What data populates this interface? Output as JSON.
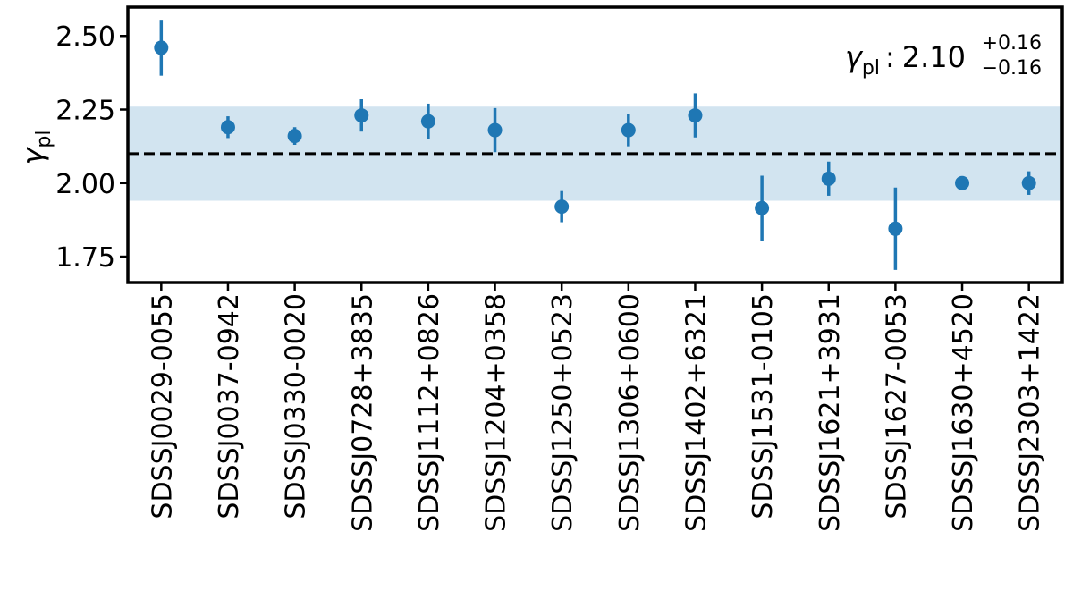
{
  "chart_data": {
    "type": "errorbar",
    "ylabel": {
      "symbol": "γ",
      "subscript": "pl"
    },
    "categories": [
      "SDSSJ0029-0055",
      "SDSSJ0037-0942",
      "SDSSJ0330-0020",
      "SDSSJ0728+3835",
      "SDSSJ1112+0826",
      "SDSSJ1204+0358",
      "SDSSJ1250+0523",
      "SDSSJ1306+0600",
      "SDSSJ1402+6321",
      "SDSSJ1531-0105",
      "SDSSJ1621+3931",
      "SDSSJ1627-0053",
      "SDSSJ1630+4520",
      "SDSSJ2303+1422"
    ],
    "series": [
      {
        "color": "#1f77b4",
        "values": [
          2.46,
          2.19,
          2.16,
          2.23,
          2.21,
          2.18,
          1.92,
          2.18,
          2.23,
          1.915,
          2.015,
          1.845,
          2.0,
          2.0
        ],
        "errors": [
          0.095,
          0.037,
          0.03,
          0.055,
          0.06,
          0.075,
          0.053,
          0.055,
          0.075,
          0.11,
          0.058,
          0.14,
          0.02,
          0.04
        ]
      }
    ],
    "annotation": {
      "symbol": "γ",
      "subscript": "pl",
      "separator": ":",
      "value": 2.1,
      "label": "2.10",
      "err_plus": 0.16,
      "err_plus_label": "+0.16",
      "err_minus": 0.16,
      "err_minus_label": "−0.16",
      "band_color": "#1f77b4",
      "line_color": "#000000"
    },
    "ylim": [
      1.662,
      2.598
    ],
    "yticks": [
      {
        "value": 1.75,
        "label": "1.75"
      },
      {
        "value": 2.0,
        "label": "2.00"
      },
      {
        "value": 2.25,
        "label": "2.25"
      },
      {
        "value": 2.5,
        "label": "2.50"
      }
    ]
  }
}
